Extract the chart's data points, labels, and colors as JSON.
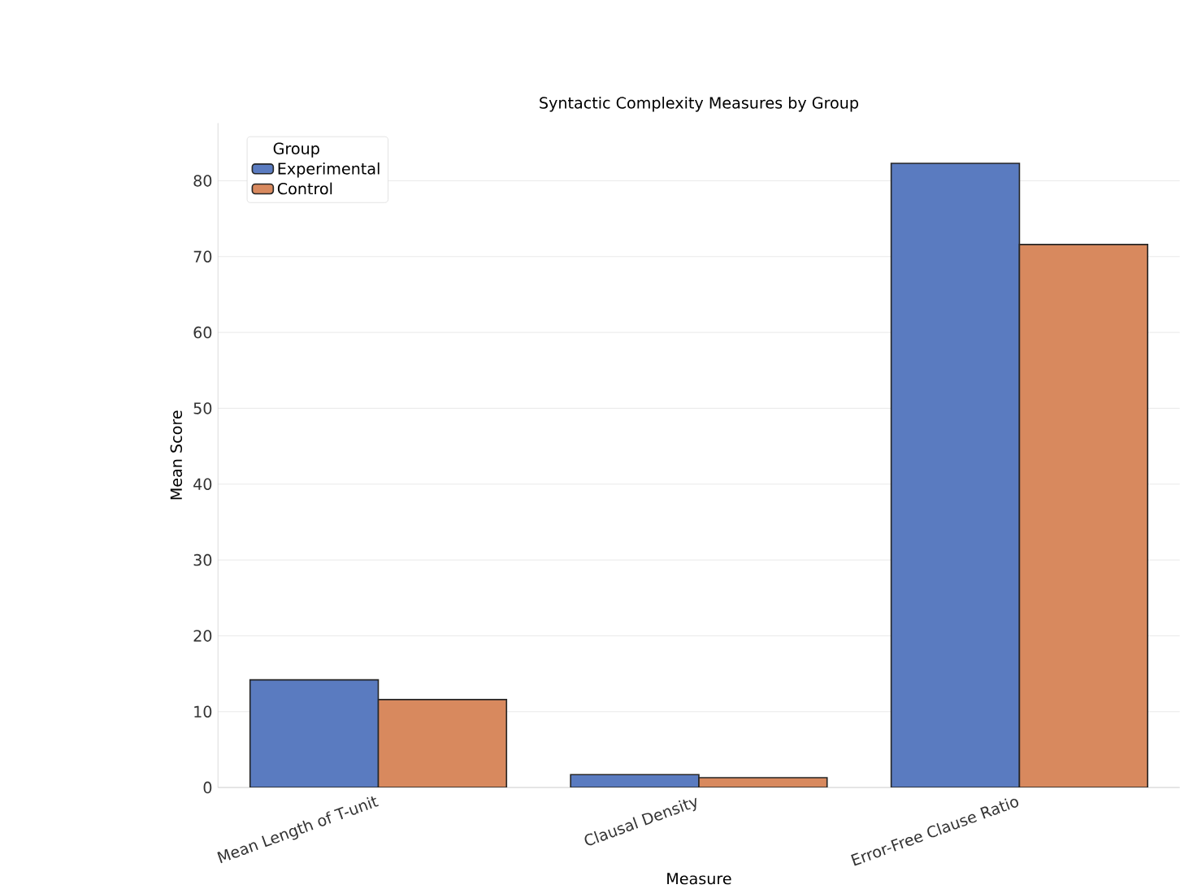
{
  "chart_data": {
    "type": "bar",
    "title": "Syntactic Complexity Measures by Group",
    "xlabel": "Measure",
    "ylabel": "Mean Score",
    "legend_title": "Group",
    "categories": [
      "Mean Length of T-unit",
      "Clausal Density",
      "Error-Free Clause Ratio"
    ],
    "series": [
      {
        "name": "Experimental",
        "color": "#5a7bc0",
        "values": [
          14.2,
          1.7,
          82.3
        ]
      },
      {
        "name": "Control",
        "color": "#d8895e",
        "values": [
          11.6,
          1.3,
          71.6
        ]
      }
    ],
    "ylim": [
      0,
      87.6
    ],
    "yticks": [
      0,
      10,
      20,
      30,
      40,
      50,
      60,
      70,
      80
    ],
    "grid": "y",
    "legend": "top left"
  }
}
